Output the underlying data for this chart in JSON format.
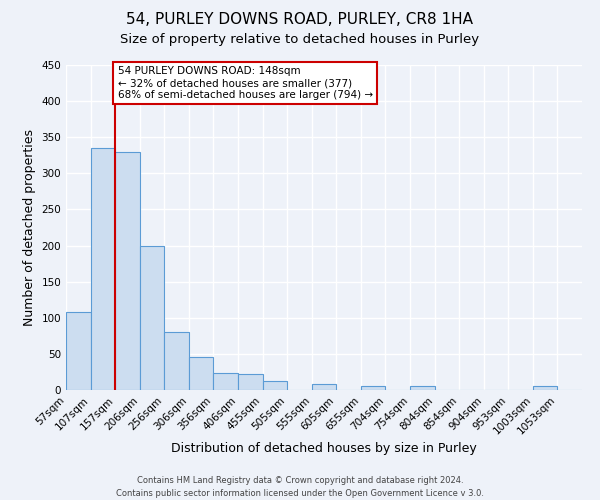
{
  "title": "54, PURLEY DOWNS ROAD, PURLEY, CR8 1HA",
  "subtitle": "Size of property relative to detached houses in Purley",
  "xlabel": "Distribution of detached houses by size in Purley",
  "ylabel": "Number of detached properties",
  "bar_labels": [
    "57sqm",
    "107sqm",
    "157sqm",
    "206sqm",
    "256sqm",
    "306sqm",
    "356sqm",
    "406sqm",
    "455sqm",
    "505sqm",
    "555sqm",
    "605sqm",
    "655sqm",
    "704sqm",
    "754sqm",
    "804sqm",
    "854sqm",
    "904sqm",
    "953sqm",
    "1003sqm",
    "1053sqm"
  ],
  "bar_values": [
    108,
    335,
    330,
    200,
    80,
    46,
    24,
    22,
    12,
    0,
    8,
    0,
    5,
    0,
    6,
    0,
    0,
    0,
    0,
    5,
    0
  ],
  "bar_color": "#ccddf0",
  "bar_edge_color": "#5b9bd5",
  "ylim": [
    0,
    450
  ],
  "yticks": [
    0,
    50,
    100,
    150,
    200,
    250,
    300,
    350,
    400,
    450
  ],
  "vline_x": 1.5,
  "vline_color": "#cc0000",
  "annotation_text": "54 PURLEY DOWNS ROAD: 148sqm\n← 32% of detached houses are smaller (377)\n68% of semi-detached houses are larger (794) →",
  "annotation_box_color": "#cc0000",
  "footer_line1": "Contains HM Land Registry data © Crown copyright and database right 2024.",
  "footer_line2": "Contains public sector information licensed under the Open Government Licence v 3.0.",
  "bg_color": "#eef2f9",
  "grid_color": "#ffffff",
  "title_fontsize": 11,
  "subtitle_fontsize": 9.5,
  "axis_label_fontsize": 9,
  "tick_fontsize": 7.5,
  "footer_fontsize": 6
}
